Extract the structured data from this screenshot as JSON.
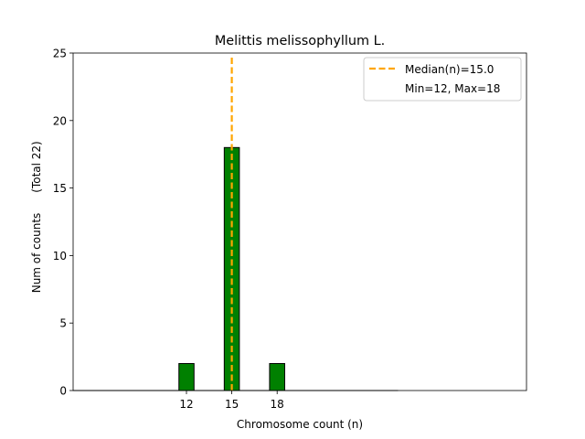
{
  "chart_data": {
    "type": "bar",
    "title": "Melittis melissophyllum L.",
    "xlabel": "Chromosome count (n)",
    "ylabel": "Num of counts",
    "ylabel_total": "(Total 22)",
    "categories": [
      12,
      15,
      18
    ],
    "values": [
      2,
      18,
      2
    ],
    "xticks": [
      "12",
      "15",
      "18"
    ],
    "yticks": [
      0,
      5,
      10,
      15,
      20,
      25
    ],
    "xlim": [
      4.5,
      34.5
    ],
    "ylim": [
      0,
      25
    ],
    "bar_width": 1,
    "bar_color": "#008000",
    "bar_edge_color": "#000000",
    "baseline_x_range": [
      4.5,
      26
    ],
    "median": 15.0,
    "median_color": "#ffa500",
    "legend": {
      "placement": "top-right",
      "entries": [
        "Median(n)=15.0",
        "Min=12, Max=18"
      ]
    }
  }
}
